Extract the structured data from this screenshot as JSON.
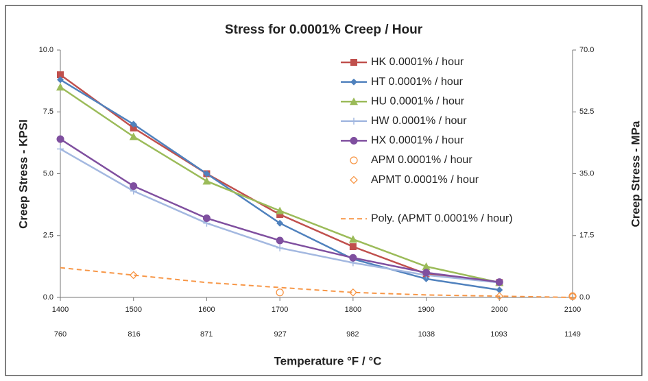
{
  "chart_data": {
    "type": "line",
    "title": "Stress for 0.0001% Creep / Hour",
    "xlabel": "Temperature °F / °C",
    "ylabel": "Creep Stress - KPSI",
    "y2label": "Creep Stress - MPa",
    "x": [
      1400,
      1500,
      1600,
      1700,
      1800,
      1900,
      2000,
      2100
    ],
    "xlim": [
      1400,
      2100
    ],
    "xticks": [
      1400,
      1500,
      1600,
      1700,
      1800,
      1900,
      2000,
      2100
    ],
    "x2lim": [
      760,
      1149
    ],
    "x2ticks": [
      760,
      816,
      871,
      927,
      982,
      1038,
      1093,
      1149
    ],
    "ylim": [
      0,
      10
    ],
    "yticks": [
      {
        "value": 0,
        "label": "0.0"
      },
      {
        "value": 2.5,
        "label": "2.5"
      },
      {
        "value": 5,
        "label": "5.0"
      },
      {
        "value": 7.5,
        "label": "7.5"
      },
      {
        "value": 10,
        "label": "10.0"
      }
    ],
    "y2lim": [
      0,
      70
    ],
    "y2ticks": [
      {
        "value": 0,
        "label": "0.0"
      },
      {
        "value": 17.5,
        "label": "17.5"
      },
      {
        "value": 35,
        "label": "35.0"
      },
      {
        "value": 52.5,
        "label": "52.5"
      },
      {
        "value": 70,
        "label": "70.0"
      }
    ],
    "series": [
      {
        "name": "HK 0.0001% / hour",
        "color": "#c0504d",
        "marker": "square",
        "line": true,
        "values": [
          9.0,
          6.85,
          5.0,
          3.35,
          2.05,
          0.95,
          0.6,
          null
        ]
      },
      {
        "name": "HT 0.0001% / hour",
        "color": "#4f81bd",
        "marker": "diamond",
        "line": true,
        "values": [
          8.8,
          7.0,
          5.0,
          3.0,
          1.55,
          0.75,
          0.3,
          null
        ]
      },
      {
        "name": "HU 0.0001% / hour",
        "color": "#9bbb59",
        "marker": "triangle",
        "line": true,
        "values": [
          8.5,
          6.5,
          4.7,
          3.5,
          2.35,
          1.25,
          0.6,
          null
        ]
      },
      {
        "name": "HW 0.0001% / hour",
        "color": "#a3b8e0",
        "marker": "plus",
        "line": true,
        "values": [
          6.0,
          4.3,
          3.0,
          2.0,
          1.4,
          0.9,
          0.6,
          null
        ]
      },
      {
        "name": "HX 0.0001% / hour",
        "color": "#7f4f9f",
        "marker": "circle",
        "line": true,
        "values": [
          6.4,
          4.5,
          3.2,
          2.3,
          1.6,
          1.0,
          0.62,
          null
        ]
      },
      {
        "name": "APM 0.0001% / hour",
        "color": "#f79646",
        "marker": "circle-open",
        "line": false,
        "values": [
          null,
          null,
          null,
          0.2,
          null,
          null,
          null,
          0.05
        ]
      },
      {
        "name": "APMT 0.0001% / hour",
        "color": "#f79646",
        "marker": "diamond-open",
        "line": false,
        "values": [
          null,
          0.9,
          null,
          null,
          0.2,
          null,
          0.05,
          0.05
        ]
      },
      {
        "name": "Poly. (APMT 0.0001% / hour)",
        "color": "#f79646",
        "marker": "none",
        "line": true,
        "dash": true,
        "values": [
          1.2,
          0.9,
          0.6,
          0.4,
          0.2,
          0.1,
          0.05,
          0.0
        ]
      }
    ]
  }
}
